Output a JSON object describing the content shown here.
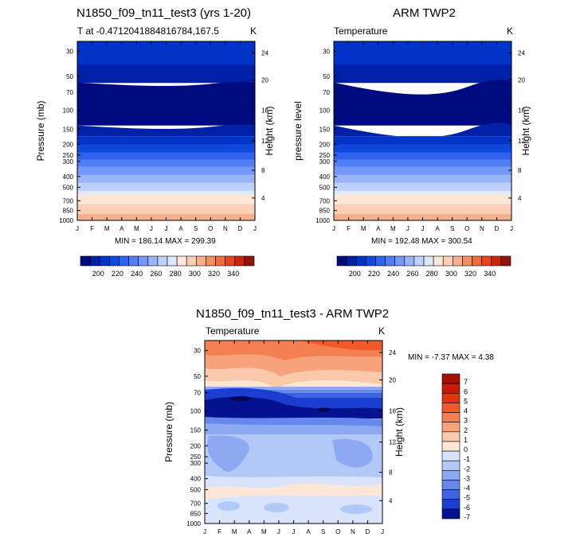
{
  "chart_data": [
    {
      "type": "contour",
      "title": "N1850_f09_tn11_test3 (yrs 1-20)",
      "subtitle_left": "T at -0.4712041884816784,167.5",
      "subtitle_right": "K",
      "ylabel": "Pressure (mb)",
      "ylabel_right": "Height (km)",
      "x_ticks": [
        "J",
        "F",
        "M",
        "A",
        "M",
        "J",
        "J",
        "A",
        "S",
        "O",
        "N",
        "D",
        "J"
      ],
      "y_ticks": [
        "30",
        "50",
        "70",
        "100",
        "150",
        "200",
        "250",
        "300",
        "400",
        "500",
        "700",
        "850",
        "1000"
      ],
      "y_right_ticks": [
        "24",
        "20",
        "16",
        "12",
        "8",
        "4"
      ],
      "minmax": "MIN = 186.14 MAX = 299.39",
      "levels": [
        200,
        220,
        240,
        260,
        280,
        300,
        320,
        340
      ],
      "level_labels": [
        "200",
        "220",
        "240",
        "260",
        "280",
        "300",
        "320",
        "340"
      ]
    },
    {
      "type": "contour",
      "title": "ARM TWP2",
      "subtitle_left": "Temperature",
      "subtitle_right": "K",
      "ylabel": "pressure level",
      "ylabel_right": "Height (km)",
      "x_ticks": [
        "J",
        "F",
        "M",
        "A",
        "M",
        "J",
        "J",
        "A",
        "S",
        "O",
        "N",
        "D",
        "J"
      ],
      "y_ticks": [
        "30",
        "50",
        "70",
        "100",
        "150",
        "200",
        "250",
        "300",
        "400",
        "500",
        "700",
        "850",
        "1000"
      ],
      "y_right_ticks": [
        "24",
        "20",
        "16",
        "12",
        "8",
        "4"
      ],
      "minmax": "MIN = 192.48 MAX = 300.54",
      "levels": [
        200,
        220,
        240,
        260,
        280,
        300,
        320,
        340
      ],
      "level_labels": [
        "200",
        "220",
        "240",
        "260",
        "280",
        "300",
        "320",
        "340"
      ]
    },
    {
      "type": "contour",
      "title": "N1850_f09_tn11_test3 - ARM TWP2",
      "subtitle_left": "Temperature",
      "subtitle_right": "K",
      "ylabel": "Pressure (mb)",
      "ylabel_right": "Height (km)",
      "x_ticks": [
        "J",
        "F",
        "M",
        "A",
        "M",
        "J",
        "J",
        "A",
        "S",
        "O",
        "N",
        "D",
        "J"
      ],
      "y_ticks": [
        "30",
        "50",
        "70",
        "100",
        "150",
        "200",
        "250",
        "300",
        "400",
        "500",
        "700",
        "850",
        "1000"
      ],
      "y_right_ticks": [
        "24",
        "20",
        "16",
        "12",
        "8",
        "4"
      ],
      "minmax": "MIN =  -7.37 MAX =   4.38",
      "levels": [
        7,
        6,
        5,
        4,
        3,
        2,
        1,
        0,
        -1,
        -2,
        -3,
        -4,
        -5,
        -6,
        -7
      ],
      "level_labels": [
        "7",
        "6",
        "5",
        "4",
        "3",
        "2",
        "1",
        "0",
        "-1",
        "-2",
        "-3",
        "-4",
        "-5",
        "-6",
        "-7"
      ]
    }
  ],
  "colors": {
    "cold": [
      "#000b80",
      "#0020a8",
      "#0033c8",
      "#1148dc",
      "#2f62ee",
      "#517ef5",
      "#7398f7",
      "#98b4f6",
      "#bdd1f9",
      "#dde8fb"
    ],
    "warm": [
      "#fbe6d8",
      "#f9cfb6",
      "#f6b08c",
      "#f38f62",
      "#ef6c3c",
      "#e8451c",
      "#c72710",
      "#931408"
    ]
  }
}
